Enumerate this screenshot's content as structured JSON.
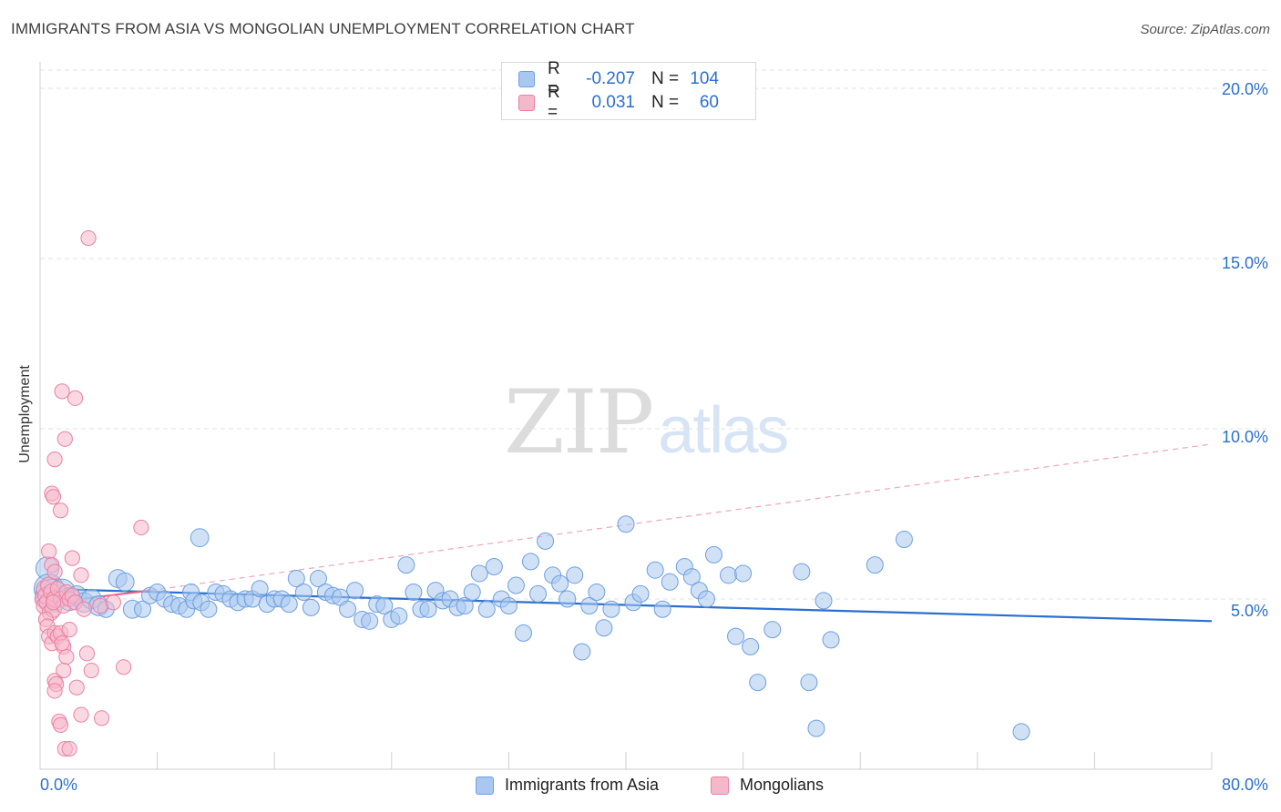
{
  "header": {
    "title": "IMMIGRANTS FROM ASIA VS MONGOLIAN UNEMPLOYMENT CORRELATION CHART",
    "source": "Source: ZipAtlas.com"
  },
  "watermark": {
    "zip": "ZIP",
    "atlas": "atlas"
  },
  "legend": {
    "rows": [
      {
        "r_label": "R =",
        "r_value": "-0.207",
        "n_label": "N =",
        "n_value": "104"
      },
      {
        "r_label": "R =",
        "r_value": "0.031",
        "n_label": "N =",
        "n_value": "60"
      }
    ]
  },
  "bottom_legend": {
    "series1": "Immigrants from Asia",
    "series2": "Mongolians"
  },
  "colors": {
    "blue_fill": "#a9c8ef",
    "blue_stroke": "#6d9fe0",
    "blue_line": "#2a6fd1",
    "pink_fill": "#f5b8cb",
    "pink_stroke": "#ec7fa3",
    "pink_line": "#e8608c",
    "grid": "#e2e2e2",
    "axis_text": "#2a6fd1"
  },
  "chart_data": {
    "type": "scatter",
    "title": "IMMIGRANTS FROM ASIA VS MONGOLIAN UNEMPLOYMENT CORRELATION CHART",
    "xlabel": "",
    "ylabel": "Unemployment",
    "xlim": [
      0,
      80
    ],
    "ylim": [
      0,
      20.5
    ],
    "x_tick_labels": {
      "min": "0.0%",
      "max": "80.0%"
    },
    "y_ticks": [
      {
        "value": 5,
        "label": "5.0%"
      },
      {
        "value": 10,
        "label": "10.0%"
      },
      {
        "value": 15,
        "label": "15.0%"
      },
      {
        "value": 20,
        "label": "20.0%"
      }
    ],
    "grid": true,
    "legend_position": "top-center",
    "series": [
      {
        "name": "Immigrants from Asia",
        "color": "#a9c8ef",
        "trend": {
          "x": [
            0,
            80
          ],
          "y": [
            5.3,
            4.35
          ],
          "style": "solid"
        },
        "points": [
          [
            0.5,
            5.9,
            14
          ],
          [
            0.6,
            5.3,
            18
          ],
          [
            0.8,
            5.1,
            20
          ],
          [
            1.5,
            5.2,
            16
          ],
          [
            2,
            5.0,
            14
          ],
          [
            2.5,
            5.1,
            12
          ],
          [
            3,
            4.9,
            12
          ],
          [
            3.5,
            5.0,
            12
          ],
          [
            4,
            4.8,
            12
          ],
          [
            4.5,
            4.7,
            10
          ],
          [
            5.3,
            5.6,
            11
          ],
          [
            5.8,
            5.5,
            11
          ],
          [
            6.3,
            4.7,
            11
          ],
          [
            7,
            4.7,
            10
          ],
          [
            7.5,
            5.1,
            10
          ],
          [
            8,
            5.2,
            10
          ],
          [
            8.5,
            5.0,
            10
          ],
          [
            9,
            4.85,
            10
          ],
          [
            9.5,
            4.8,
            10
          ],
          [
            10,
            4.7,
            10
          ],
          [
            10.3,
            5.2,
            10
          ],
          [
            10.5,
            4.95,
            10
          ],
          [
            11,
            4.9,
            10
          ],
          [
            11.5,
            4.7,
            10
          ],
          [
            12,
            5.2,
            10
          ],
          [
            12.5,
            5.15,
            10
          ],
          [
            13,
            5.0,
            10
          ],
          [
            13.5,
            4.9,
            10
          ],
          [
            14,
            5.0,
            10
          ],
          [
            14.5,
            5.0,
            10
          ],
          [
            10.9,
            6.8,
            11
          ],
          [
            15,
            5.3,
            10
          ],
          [
            15.5,
            4.85,
            10
          ],
          [
            16,
            5.0,
            10
          ],
          [
            16.5,
            5.0,
            10
          ],
          [
            17,
            4.85,
            10
          ],
          [
            17.5,
            5.6,
            10
          ],
          [
            18,
            5.2,
            10
          ],
          [
            18.5,
            4.75,
            10
          ],
          [
            19,
            5.6,
            10
          ],
          [
            19.5,
            5.2,
            10
          ],
          [
            20,
            5.1,
            10
          ],
          [
            20.5,
            5.05,
            10
          ],
          [
            21,
            4.7,
            10
          ],
          [
            21.5,
            5.25,
            10
          ],
          [
            22,
            4.4,
            10
          ],
          [
            22.5,
            4.35,
            10
          ],
          [
            23,
            4.85,
            10
          ],
          [
            23.5,
            4.8,
            10
          ],
          [
            24,
            4.4,
            10
          ],
          [
            24.5,
            4.5,
            10
          ],
          [
            25,
            6.0,
            10
          ],
          [
            25.5,
            5.2,
            10
          ],
          [
            26,
            4.7,
            10
          ],
          [
            26.5,
            4.7,
            10
          ],
          [
            27,
            5.25,
            10
          ],
          [
            27.5,
            4.95,
            10
          ],
          [
            28,
            5.0,
            10
          ],
          [
            28.5,
            4.75,
            10
          ],
          [
            29,
            4.8,
            10
          ],
          [
            29.5,
            5.2,
            10
          ],
          [
            30,
            5.75,
            10
          ],
          [
            30.5,
            4.7,
            10
          ],
          [
            31,
            5.95,
            10
          ],
          [
            31.5,
            5.0,
            10
          ],
          [
            32,
            4.8,
            10
          ],
          [
            32.5,
            5.4,
            10
          ],
          [
            33,
            4.0,
            10
          ],
          [
            33.5,
            6.1,
            10
          ],
          [
            34,
            5.15,
            10
          ],
          [
            34.5,
            6.7,
            10
          ],
          [
            35,
            5.7,
            10
          ],
          [
            35.5,
            5.45,
            10
          ],
          [
            36,
            5.0,
            10
          ],
          [
            36.5,
            5.7,
            10
          ],
          [
            37,
            3.45,
            10
          ],
          [
            37.5,
            4.8,
            10
          ],
          [
            38,
            5.2,
            10
          ],
          [
            38.5,
            4.15,
            10
          ],
          [
            39,
            4.7,
            10
          ],
          [
            40,
            7.2,
            10
          ],
          [
            40.5,
            4.9,
            10
          ],
          [
            41,
            5.15,
            10
          ],
          [
            42,
            5.85,
            10
          ],
          [
            42.5,
            4.7,
            10
          ],
          [
            43,
            5.5,
            10
          ],
          [
            44,
            5.95,
            10
          ],
          [
            44.5,
            5.65,
            10
          ],
          [
            45,
            5.25,
            10
          ],
          [
            45.5,
            5.0,
            10
          ],
          [
            46,
            6.3,
            10
          ],
          [
            47,
            5.7,
            10
          ],
          [
            47.5,
            3.9,
            10
          ],
          [
            48,
            5.75,
            10
          ],
          [
            48.5,
            3.6,
            10
          ],
          [
            49,
            2.55,
            10
          ],
          [
            50,
            4.1,
            10
          ],
          [
            52,
            5.8,
            10
          ],
          [
            52.5,
            2.55,
            10
          ],
          [
            53,
            1.2,
            10
          ],
          [
            53.5,
            4.95,
            10
          ],
          [
            54,
            3.8,
            10
          ],
          [
            57,
            6.0,
            10
          ],
          [
            59,
            6.75,
            10
          ],
          [
            67,
            1.1,
            10
          ]
        ]
      },
      {
        "name": "Mongolians",
        "color": "#f5b8cb",
        "trend": {
          "x": [
            0,
            7.5
          ],
          "y": [
            4.85,
            5.25
          ],
          "style": "solid",
          "dashed_extension": {
            "x": [
              7.5,
              80
            ],
            "y": [
              5.25,
              9.55
            ]
          }
        },
        "points": [
          [
            0.2,
            5.0,
            10
          ],
          [
            0.3,
            4.8,
            10
          ],
          [
            0.3,
            5.3,
            10
          ],
          [
            0.4,
            5.1,
            10
          ],
          [
            0.5,
            4.9,
            10
          ],
          [
            0.6,
            5.4,
            10
          ],
          [
            0.7,
            4.6,
            10
          ],
          [
            0.8,
            5.2,
            10
          ],
          [
            0.9,
            4.7,
            10
          ],
          [
            1.0,
            5.0,
            10
          ],
          [
            0.4,
            4.4,
            9
          ],
          [
            0.5,
            4.2,
            9
          ],
          [
            0.6,
            3.9,
            9
          ],
          [
            0.8,
            3.7,
            9
          ],
          [
            1.0,
            4.0,
            9
          ],
          [
            1.2,
            3.9,
            9
          ],
          [
            1.4,
            4.0,
            9
          ],
          [
            1.6,
            3.6,
            9
          ],
          [
            1.8,
            3.3,
            9
          ],
          [
            2.0,
            4.1,
            9
          ],
          [
            0.6,
            6.4,
            9
          ],
          [
            0.8,
            6.0,
            9
          ],
          [
            1.0,
            5.8,
            9
          ],
          [
            1.2,
            5.3,
            9
          ],
          [
            1.4,
            5.0,
            9
          ],
          [
            1.6,
            4.8,
            9
          ],
          [
            1.8,
            5.2,
            9
          ],
          [
            2.0,
            5.0,
            9
          ],
          [
            2.2,
            5.1,
            9
          ],
          [
            2.4,
            4.9,
            9
          ],
          [
            0.8,
            8.1,
            9
          ],
          [
            0.9,
            8.0,
            9
          ],
          [
            1.0,
            9.1,
            9
          ],
          [
            1.4,
            7.6,
            9
          ],
          [
            1.5,
            11.1,
            9
          ],
          [
            1.7,
            9.7,
            9
          ],
          [
            2.4,
            10.9,
            9
          ],
          [
            2.2,
            6.2,
            9
          ],
          [
            2.8,
            5.7,
            9
          ],
          [
            3.0,
            4.7,
            9
          ],
          [
            1.0,
            2.6,
            9
          ],
          [
            1.1,
            2.5,
            9
          ],
          [
            1.0,
            2.3,
            9
          ],
          [
            1.3,
            1.4,
            9
          ],
          [
            1.4,
            1.3,
            9
          ],
          [
            1.6,
            2.9,
            9
          ],
          [
            1.7,
            0.6,
            9
          ],
          [
            2.0,
            0.6,
            9
          ],
          [
            2.5,
            2.4,
            9
          ],
          [
            2.8,
            1.6,
            9
          ],
          [
            3.2,
            3.4,
            9
          ],
          [
            3.5,
            2.9,
            9
          ],
          [
            4.2,
            1.5,
            9
          ],
          [
            4.1,
            4.8,
            9
          ],
          [
            5.0,
            4.9,
            9
          ],
          [
            5.7,
            3.0,
            9
          ],
          [
            6.9,
            7.1,
            9
          ],
          [
            3.3,
            15.6,
            9
          ],
          [
            1.5,
            3.7,
            9
          ],
          [
            0.9,
            4.9,
            9
          ]
        ]
      }
    ]
  }
}
